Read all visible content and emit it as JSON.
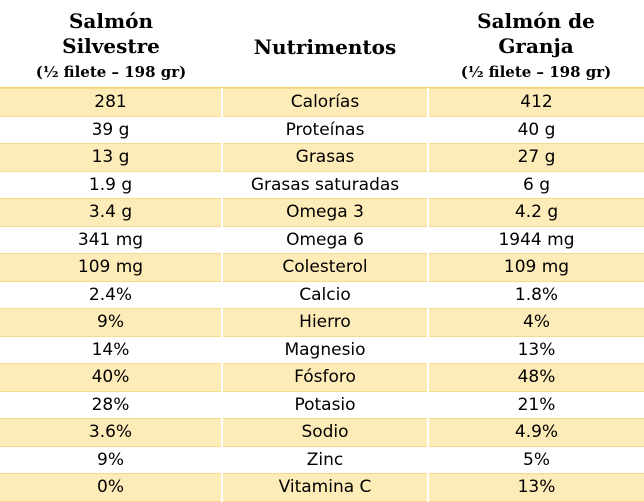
{
  "header": {
    "wild_title_line1": "Salmón",
    "wild_title_line2": "Silvestre",
    "wild_subtitle": "(½ filete – 198 gr)",
    "nutrients_title": "Nutrimentos",
    "farm_title_line1": "Salmón de",
    "farm_title_line2": "Granja",
    "farm_subtitle": "(½ filete – 198 gr)"
  },
  "rows": [
    {
      "wild": "281",
      "nutrient": "Calorías",
      "farm": "412"
    },
    {
      "wild": "39 g",
      "nutrient": "Proteínas",
      "farm": "40 g"
    },
    {
      "wild": "13 g",
      "nutrient": "Grasas",
      "farm": "27 g"
    },
    {
      "wild": "1.9 g",
      "nutrient": "Grasas saturadas",
      "farm": "6 g"
    },
    {
      "wild": "3.4 g",
      "nutrient": "Omega 3",
      "farm": "4.2 g"
    },
    {
      "wild": "341 mg",
      "nutrient": "Omega 6",
      "farm": "1944 mg"
    },
    {
      "wild": "109 mg",
      "nutrient": "Colesterol",
      "farm": "109 mg"
    },
    {
      "wild": "2.4%",
      "nutrient": "Calcio",
      "farm": "1.8%"
    },
    {
      "wild": "9%",
      "nutrient": "Hierro",
      "farm": "4%"
    },
    {
      "wild": "14%",
      "nutrient": "Magnesio",
      "farm": "13%"
    },
    {
      "wild": "40%",
      "nutrient": "Fósforo",
      "farm": "48%"
    },
    {
      "wild": "28%",
      "nutrient": "Potasio",
      "farm": "21%"
    },
    {
      "wild": "3.6%",
      "nutrient": "Sodio",
      "farm": "4.9%"
    },
    {
      "wild": "9%",
      "nutrient": "Zinc",
      "farm": "5%"
    },
    {
      "wild": "0%",
      "nutrient": "Vitamina C",
      "farm": "13%"
    }
  ],
  "colors": {
    "shaded_row": "#fdebb8",
    "grid_line": "#f5d98c"
  }
}
